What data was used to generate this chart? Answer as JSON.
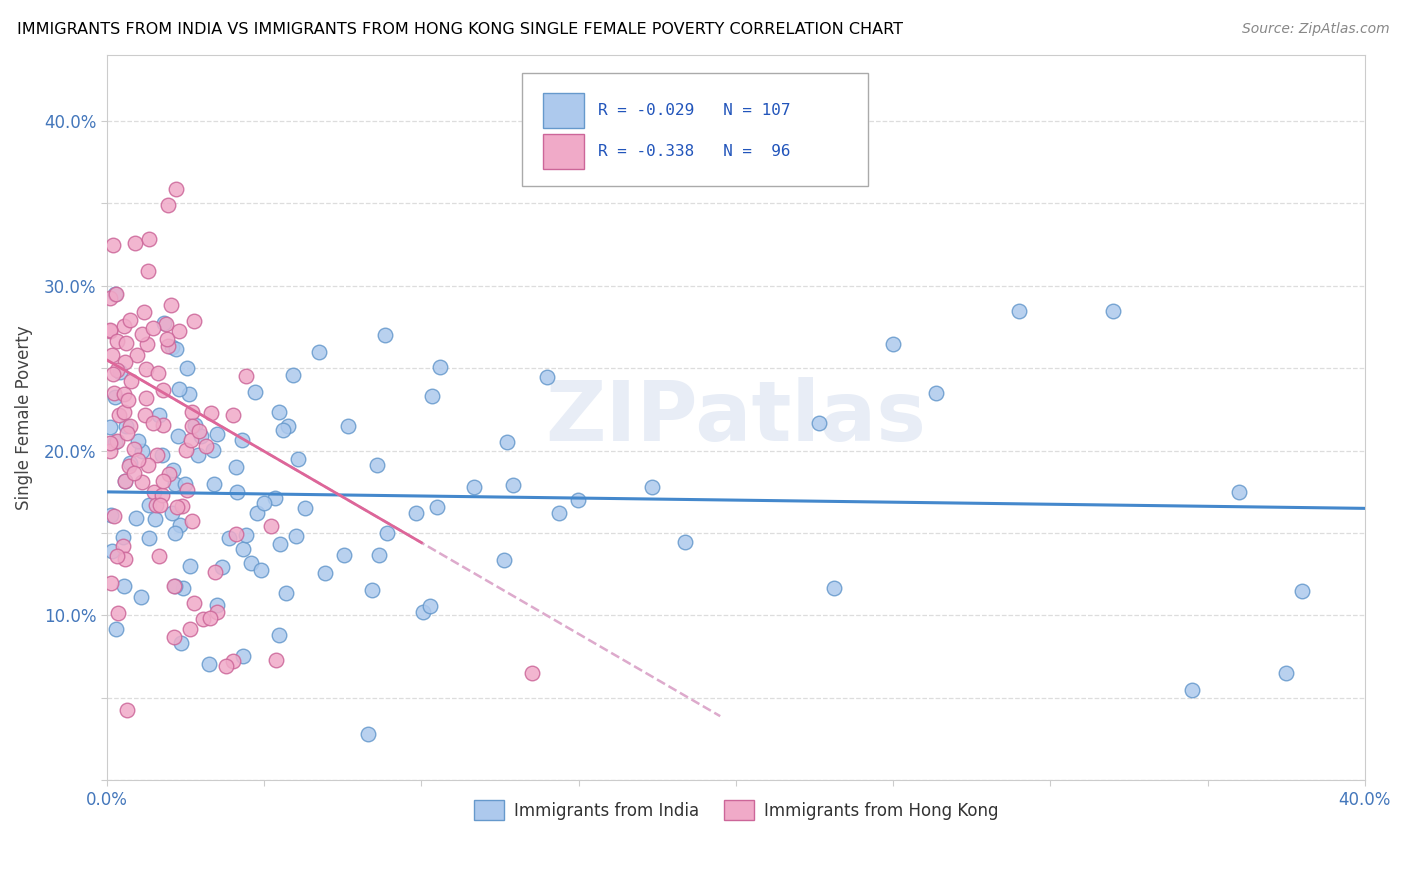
{
  "title": "IMMIGRANTS FROM INDIA VS IMMIGRANTS FROM HONG KONG SINGLE FEMALE POVERTY CORRELATION CHART",
  "source": "Source: ZipAtlas.com",
  "ylabel": "Single Female Poverty",
  "xlim": [
    0.0,
    0.4
  ],
  "ylim": [
    0.0,
    0.44
  ],
  "xtick_pos": [
    0.0,
    0.05,
    0.1,
    0.15,
    0.2,
    0.25,
    0.3,
    0.35,
    0.4
  ],
  "ytick_pos": [
    0.0,
    0.05,
    0.1,
    0.15,
    0.2,
    0.25,
    0.3,
    0.35,
    0.4
  ],
  "xticklabels": [
    "0.0%",
    "",
    "",
    "",
    "",
    "",
    "",
    "",
    "40.0%"
  ],
  "yticklabels": [
    "",
    "",
    "10.0%",
    "",
    "20.0%",
    "",
    "30.0%",
    "",
    "40.0%"
  ],
  "india_color": "#adc9ed",
  "india_edge": "#6699cc",
  "hk_color": "#f0aac8",
  "hk_edge": "#cc6699",
  "india_R": -0.029,
  "india_N": 107,
  "hk_R": -0.338,
  "hk_N": 96,
  "legend_text_color": "#2255bb",
  "regression_india_color": "#4488cc",
  "regression_hk_color": "#dd6699",
  "regression_hk_dash_color": "#ddaacc",
  "watermark": "ZIPatlas",
  "tick_color": "#4477bb",
  "grid_color": "#dddddd",
  "spine_color": "#cccccc"
}
